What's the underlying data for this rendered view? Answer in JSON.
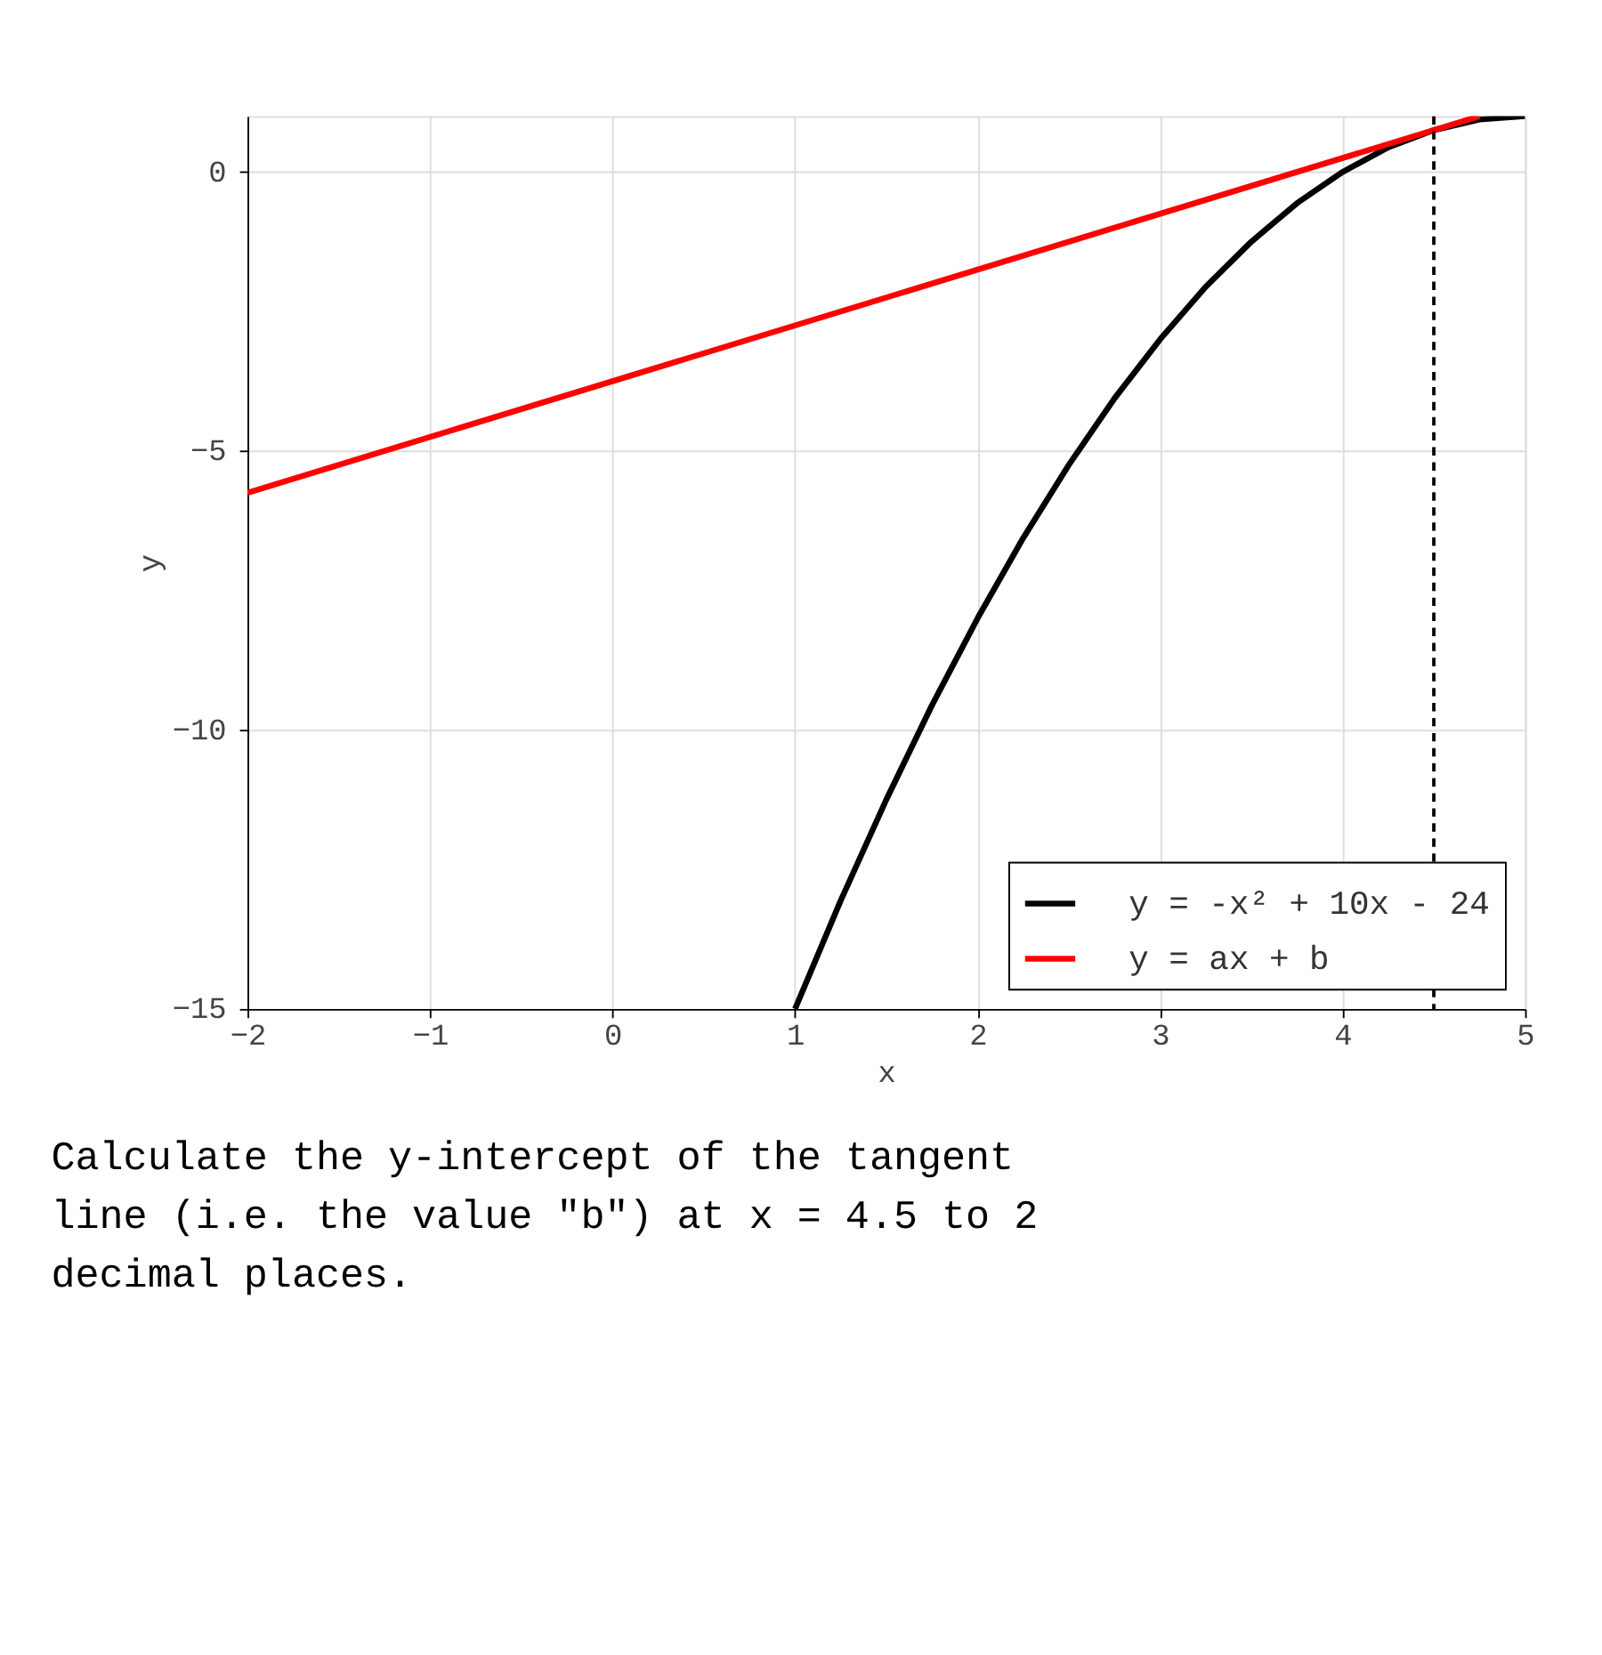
{
  "chart_data": {
    "type": "line",
    "xlabel": "x",
    "ylabel": "y",
    "xlim": [
      -2,
      5
    ],
    "ylim": [
      -15,
      1
    ],
    "xticks": [
      -2,
      -1,
      0,
      1,
      2,
      3,
      4,
      5
    ],
    "yticks": [
      -15,
      -10,
      -5,
      0
    ],
    "grid": true,
    "legend": "bottom right",
    "line_style": "solid",
    "marker": "none",
    "series": [
      {
        "name": "y = -x² + 10x - 24",
        "color": "#000000",
        "x": [
          1,
          1.25,
          1.5,
          1.75,
          2,
          2.25,
          2.5,
          2.75,
          3,
          3.25,
          3.5,
          3.75,
          4,
          4.25,
          4.5,
          4.75,
          5
        ],
        "values": [
          -15,
          -13.06,
          -11.25,
          -9.56,
          -8,
          -6.56,
          -5.25,
          -4.06,
          -3,
          -2.06,
          -1.25,
          -0.56,
          0,
          0.44,
          0.75,
          0.94,
          1
        ]
      },
      {
        "name": "y = ax + b",
        "color": "#ff0000",
        "x": [
          -2,
          4.75
        ],
        "values": [
          -5.75,
          1
        ]
      }
    ],
    "ref_lines": [
      {
        "axis": "x",
        "value": 4.5,
        "color": "#000000",
        "line_style": "dashed"
      }
    ],
    "annotations": [
      "Calculate the y-intercept of the tangent line (i.e. the value \"b\") at x = 4.5 to 2 decimal places."
    ]
  }
}
